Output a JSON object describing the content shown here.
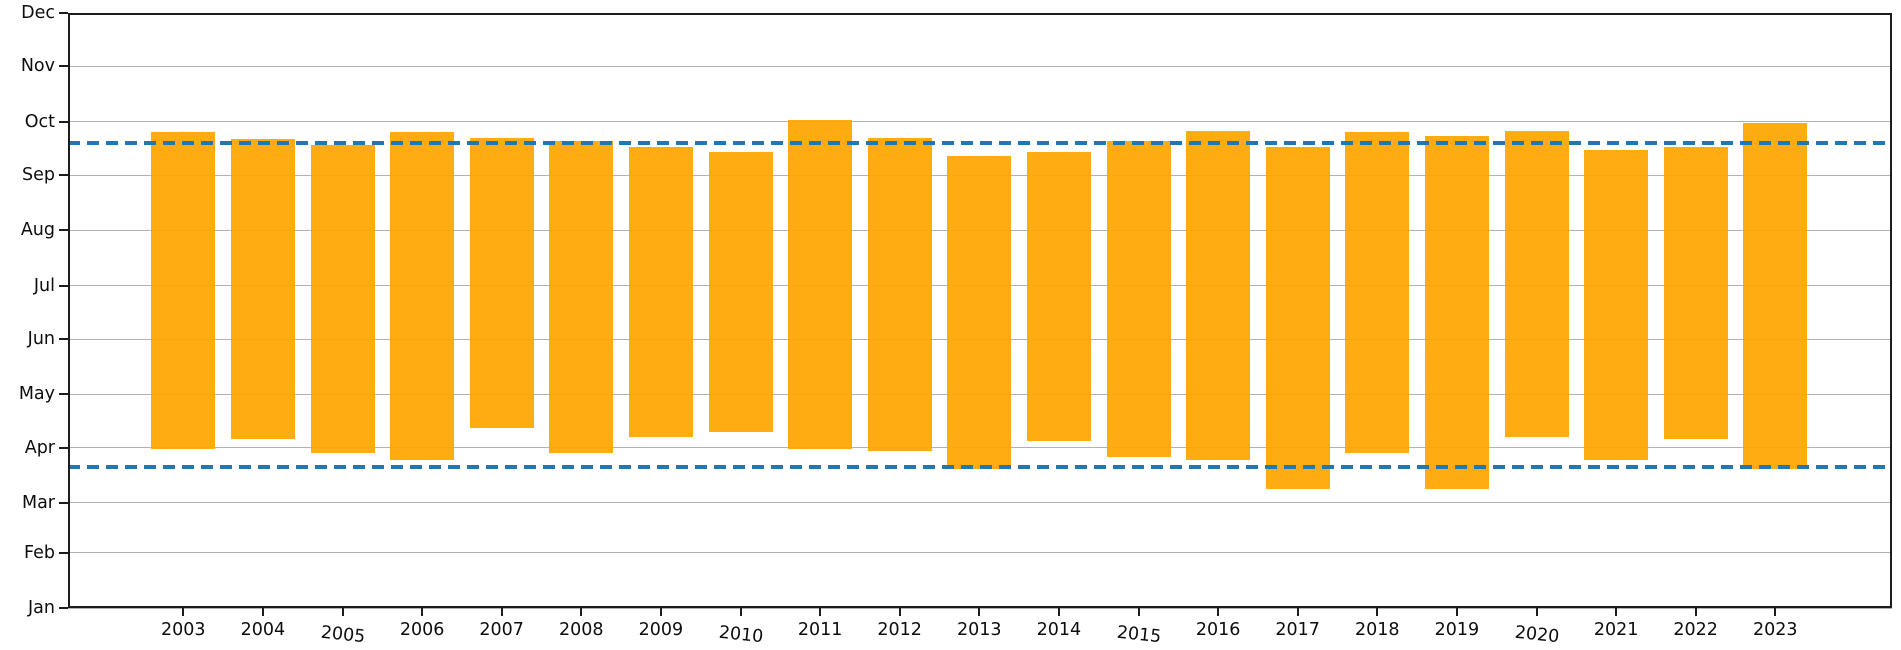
{
  "chart_data": {
    "type": "bar",
    "subtype": "vertical-range-bars",
    "title": "",
    "x_categories": [
      "2003",
      "2004",
      "2005",
      "2006",
      "2007",
      "2008",
      "2009",
      "2010",
      "2011",
      "2012",
      "2013",
      "2014",
      "2015",
      "2016",
      "2017",
      "2018",
      "2019",
      "2020",
      "2021",
      "2022",
      "2023"
    ],
    "y_axis": {
      "tick_labels": [
        "Jan",
        "Feb",
        "Mar",
        "Apr",
        "May",
        "Jun",
        "Jul",
        "Aug",
        "Sep",
        "Oct",
        "Nov",
        "Dec"
      ],
      "month_start_day_of_year": [
        1,
        32,
        60,
        91,
        121,
        152,
        182,
        213,
        244,
        274,
        305,
        335
      ],
      "ylim_days": [
        1,
        335
      ],
      "grid": true
    },
    "series": [
      {
        "name": "annual-span",
        "units": "day_of_year",
        "bars": [
          {
            "year": "2003",
            "start_day": 90,
            "end_day": 268,
            "start_date": "Mar 31",
            "end_date": "Sep 25"
          },
          {
            "year": "2004",
            "start_day": 96,
            "end_day": 264,
            "start_date": "Apr 6",
            "end_date": "Sep 21"
          },
          {
            "year": "2005",
            "start_day": 88,
            "end_day": 261,
            "start_date": "Mar 29",
            "end_date": "Sep 18"
          },
          {
            "year": "2006",
            "start_day": 84,
            "end_day": 268,
            "start_date": "Mar 25",
            "end_date": "Sep 25"
          },
          {
            "year": "2007",
            "start_day": 102,
            "end_day": 265,
            "start_date": "Apr 12",
            "end_date": "Sep 22"
          },
          {
            "year": "2008",
            "start_day": 88,
            "end_day": 263,
            "start_date": "Mar 29",
            "end_date": "Sep 20"
          },
          {
            "year": "2009",
            "start_day": 97,
            "end_day": 260,
            "start_date": "Apr 7",
            "end_date": "Sep 17"
          },
          {
            "year": "2010",
            "start_day": 100,
            "end_day": 257,
            "start_date": "Apr 10",
            "end_date": "Sep 14"
          },
          {
            "year": "2011",
            "start_day": 90,
            "end_day": 275,
            "start_date": "Mar 31",
            "end_date": "Oct 2"
          },
          {
            "year": "2012",
            "start_day": 89,
            "end_day": 265,
            "start_date": "Mar 30",
            "end_date": "Sep 22"
          },
          {
            "year": "2013",
            "start_day": 79,
            "end_day": 255,
            "start_date": "Mar 20",
            "end_date": "Sep 12"
          },
          {
            "year": "2014",
            "start_day": 95,
            "end_day": 257,
            "start_date": "Apr 5",
            "end_date": "Sep 14"
          },
          {
            "year": "2015",
            "start_day": 86,
            "end_day": 263,
            "start_date": "Mar 27",
            "end_date": "Sep 20"
          },
          {
            "year": "2016",
            "start_day": 84,
            "end_day": 269,
            "start_date": "Mar 25",
            "end_date": "Sep 26"
          },
          {
            "year": "2017",
            "start_day": 68,
            "end_day": 260,
            "start_date": "Mar 9",
            "end_date": "Sep 17"
          },
          {
            "year": "2018",
            "start_day": 88,
            "end_day": 268,
            "start_date": "Mar 29",
            "end_date": "Sep 25"
          },
          {
            "year": "2019",
            "start_day": 68,
            "end_day": 266,
            "start_date": "Mar 9",
            "end_date": "Sep 23"
          },
          {
            "year": "2020",
            "start_day": 97,
            "end_day": 269,
            "start_date": "Apr 7",
            "end_date": "Sep 26"
          },
          {
            "year": "2021",
            "start_day": 84,
            "end_day": 258,
            "start_date": "Mar 25",
            "end_date": "Sep 15"
          },
          {
            "year": "2022",
            "start_day": 96,
            "end_day": 260,
            "start_date": "Apr 6",
            "end_date": "Sep 17"
          },
          {
            "year": "2023",
            "start_day": 79,
            "end_day": 273,
            "start_date": "Mar 20",
            "end_date": "Sep 30"
          }
        ]
      }
    ],
    "reference_lines": [
      {
        "name": "upper-mean-line",
        "day": 262,
        "date": "Sep 19",
        "style": "dashed",
        "color": "#1f77b4"
      },
      {
        "name": "lower-mean-line",
        "day": 80,
        "date": "Mar 21",
        "style": "dashed",
        "color": "#1f77b4"
      }
    ],
    "tilted_x_labels": [
      "2005",
      "2010",
      "2015",
      "2020"
    ],
    "legend": null,
    "colors": {
      "bar": "#FFA500",
      "reference_line": "#1f77b4",
      "grid": "#b2b2b2",
      "axis": "#1c1c1c",
      "text": "#0d0d0d",
      "background": "#ffffff"
    }
  }
}
